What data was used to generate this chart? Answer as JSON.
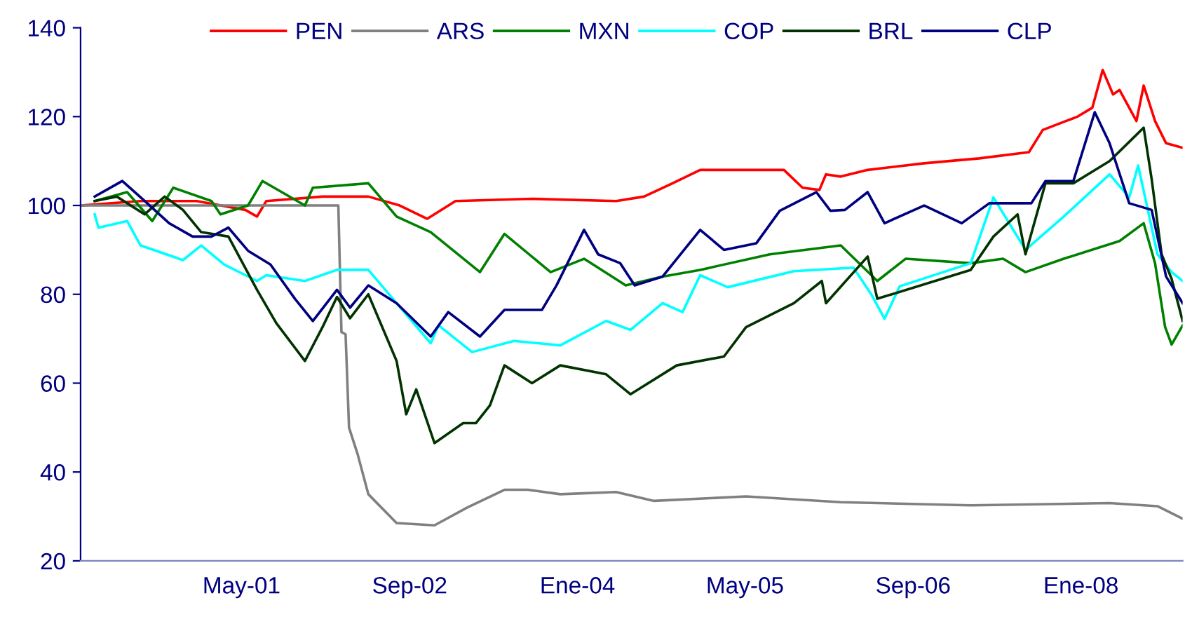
{
  "chart_data": {
    "type": "line",
    "xlim": [
      "2000-01-20",
      "2008-10-22"
    ],
    "xticks": [
      {
        "value": "2001-05-01",
        "label": "May-01"
      },
      {
        "value": "2002-09-01",
        "label": "Sep-02"
      },
      {
        "value": "2004-01-01",
        "label": "Ene-04"
      },
      {
        "value": "2005-05-01",
        "label": "May-05"
      },
      {
        "value": "2006-09-01",
        "label": "Sep-06"
      },
      {
        "value": "2008-01-01",
        "label": "Ene-08"
      }
    ],
    "ylim": [
      20,
      140
    ],
    "yticks": [
      20,
      40,
      60,
      80,
      100,
      120,
      140
    ],
    "grid": false,
    "legend": "top",
    "marker": "none",
    "line_style": "solid",
    "series": [
      {
        "name": "PEN",
        "color": "#ff0000",
        "x": [
          "2000-01-20",
          "2000-07-12",
          "2000-12-22",
          "2001-05-12",
          "2001-06-15",
          "2001-07-12",
          "2001-12-22",
          "2002-05-04",
          "2002-08-03",
          "2002-10-22",
          "2003-01-12",
          "2003-08-22",
          "2004-04-22",
          "2004-07-12",
          "2004-10-03",
          "2004-12-22",
          "2005-08-22",
          "2005-10-15",
          "2005-12-03",
          "2005-12-22",
          "2006-02-03",
          "2006-04-22",
          "2006-10-03",
          "2007-03-12",
          "2007-08-03",
          "2007-09-12",
          "2007-12-22",
          "2008-02-03",
          "2008-03-04",
          "2008-04-03",
          "2008-04-22",
          "2008-06-10",
          "2008-07-01",
          "2008-08-03",
          "2008-09-04",
          "2008-10-22"
        ],
        "values": [
          100,
          101,
          101,
          99,
          97.5,
          101,
          102,
          102,
          100,
          97,
          101,
          101.5,
          101,
          102,
          105,
          108,
          108,
          104,
          103.5,
          107,
          106.5,
          108,
          109.5,
          110.6,
          112,
          117,
          120,
          122,
          130.5,
          125,
          126,
          119,
          127,
          119,
          114,
          113
        ]
      },
      {
        "name": "ARS",
        "color": "#808080",
        "x": [
          "2000-01-20",
          "2002-02-06",
          "2002-02-15",
          "2002-02-27",
          "2002-03-09",
          "2002-04-03",
          "2002-05-04",
          "2002-07-25",
          "2002-11-12",
          "2003-02-15",
          "2003-06-03",
          "2003-08-10",
          "2003-11-12",
          "2004-04-22",
          "2004-08-10",
          "2005-05-04",
          "2006-02-03",
          "2007-02-15",
          "2008-03-24",
          "2008-08-10",
          "2008-10-22"
        ],
        "values": [
          100,
          100,
          71.5,
          71,
          50,
          44,
          35,
          28.5,
          28,
          32,
          36,
          36,
          35,
          35.5,
          33.5,
          34.5,
          33.2,
          32.5,
          33,
          32.3,
          29.5
        ]
      },
      {
        "name": "MXN",
        "color": "#008000",
        "x": [
          "2000-03-01",
          "2000-06-03",
          "2000-08-15",
          "2000-10-15",
          "2001-02-03",
          "2001-03-01",
          "2001-05-20",
          "2001-07-01",
          "2001-11-01",
          "2001-11-24",
          "2002-05-04",
          "2002-07-25",
          "2002-11-01",
          "2003-03-24",
          "2003-06-03",
          "2003-10-15",
          "2004-01-20",
          "2004-05-20",
          "2004-09-04",
          "2004-12-22",
          "2005-07-12",
          "2006-02-03",
          "2006-05-20",
          "2006-08-10",
          "2007-02-15",
          "2007-05-20",
          "2007-07-24",
          "2007-11-12",
          "2008-04-22",
          "2008-07-01",
          "2008-08-03",
          "2008-09-01",
          "2008-09-20",
          "2008-10-22"
        ],
        "values": [
          101,
          103,
          96.5,
          104,
          101,
          98,
          100,
          105.5,
          100,
          104,
          105,
          97.5,
          94,
          85,
          93.6,
          85,
          88,
          82,
          84,
          85.5,
          89,
          91,
          83,
          88,
          87,
          88,
          85,
          88,
          92,
          96,
          87,
          72.7,
          68.7,
          73
        ]
      },
      {
        "name": "COP",
        "color": "#00ffff",
        "x": [
          "2000-03-01",
          "2000-03-12",
          "2000-06-03",
          "2000-07-12",
          "2000-11-12",
          "2001-01-04",
          "2001-03-12",
          "2001-06-15",
          "2001-07-12",
          "2001-11-01",
          "2002-02-02",
          "2002-05-04",
          "2002-07-25",
          "2002-11-01",
          "2002-11-24",
          "2003-03-01",
          "2003-07-01",
          "2003-11-12",
          "2004-03-24",
          "2004-06-03",
          "2004-09-04",
          "2004-11-01",
          "2004-12-22",
          "2005-03-12",
          "2005-09-20",
          "2006-03-12",
          "2006-05-04",
          "2006-06-10",
          "2006-07-24",
          "2007-02-15",
          "2007-04-22",
          "2007-07-24",
          "2007-11-12",
          "2008-03-24",
          "2008-05-20",
          "2008-06-15",
          "2008-08-10",
          "2008-09-20",
          "2008-10-22"
        ],
        "values": [
          98,
          95,
          96.5,
          91,
          87.7,
          91,
          86.7,
          83,
          84.3,
          83,
          85.5,
          85.5,
          78,
          69,
          73,
          67,
          69.5,
          68.5,
          74,
          72,
          78,
          76,
          84.3,
          81.6,
          85.2,
          86,
          79.8,
          74.5,
          81.8,
          87,
          101.8,
          90,
          97.5,
          107,
          101.8,
          109,
          89,
          85,
          83
        ]
      },
      {
        "name": "BRL",
        "color": "#003300",
        "x": [
          "2000-03-01",
          "2000-05-04",
          "2000-07-24",
          "2000-09-20",
          "2000-11-12",
          "2001-01-04",
          "2001-03-24",
          "2001-06-15",
          "2001-08-10",
          "2001-11-01",
          "2001-12-22",
          "2002-02-02",
          "2002-03-12",
          "2002-05-04",
          "2002-07-25",
          "2002-08-22",
          "2002-09-20",
          "2002-11-12",
          "2003-02-03",
          "2003-03-12",
          "2003-04-22",
          "2003-06-03",
          "2003-08-22",
          "2003-11-12",
          "2004-03-24",
          "2004-06-03",
          "2004-10-15",
          "2005-03-01",
          "2005-05-04",
          "2005-09-20",
          "2005-12-10",
          "2005-12-22",
          "2006-04-22",
          "2006-05-20",
          "2007-02-15",
          "2007-04-22",
          "2007-07-01",
          "2007-07-24",
          "2007-09-20",
          "2007-12-10",
          "2008-03-24",
          "2008-07-01",
          "2008-07-24",
          "2008-08-22",
          "2008-09-20",
          "2008-10-22"
        ],
        "values": [
          101,
          102,
          98,
          102,
          99,
          94,
          93,
          81,
          73.5,
          65,
          72.6,
          79.4,
          74.6,
          80,
          65,
          53,
          58.6,
          46.5,
          51,
          51,
          55,
          64,
          60,
          64,
          62,
          57.5,
          64,
          66,
          72.6,
          78,
          83,
          78,
          88.5,
          79,
          85.5,
          93,
          98,
          89,
          105,
          105,
          110,
          117.5,
          106,
          89,
          83.5,
          74
        ]
      },
      {
        "name": "CLP",
        "color": "#000080",
        "x": [
          "2000-03-01",
          "2000-05-20",
          "2000-07-24",
          "2000-10-03",
          "2000-12-10",
          "2001-02-03",
          "2001-03-24",
          "2001-05-20",
          "2001-07-24",
          "2001-10-03",
          "2001-11-24",
          "2002-02-02",
          "2002-03-12",
          "2002-05-04",
          "2002-07-25",
          "2002-11-01",
          "2002-12-22",
          "2003-03-24",
          "2003-06-03",
          "2003-09-20",
          "2003-11-01",
          "2004-01-20",
          "2004-03-01",
          "2004-05-04",
          "2004-06-15",
          "2004-09-04",
          "2004-12-22",
          "2005-03-01",
          "2005-06-03",
          "2005-08-10",
          "2005-11-24",
          "2006-01-04",
          "2006-02-15",
          "2006-04-22",
          "2006-06-10",
          "2006-10-03",
          "2007-01-20",
          "2007-04-10",
          "2007-08-10",
          "2007-09-20",
          "2007-12-10",
          "2008-02-10",
          "2008-03-24",
          "2008-05-20",
          "2008-07-24",
          "2008-09-04",
          "2008-10-22"
        ],
        "values": [
          102,
          105.5,
          101,
          96,
          93,
          93,
          95,
          89.8,
          86.7,
          79,
          74,
          81,
          77,
          82,
          78,
          70.5,
          76,
          70.5,
          76.5,
          76.5,
          82,
          94.5,
          89,
          87,
          82,
          84,
          94.5,
          90,
          91.5,
          98.8,
          103,
          98.8,
          99,
          103,
          96,
          100,
          96,
          100.5,
          100.5,
          105.5,
          105.5,
          121,
          114,
          100.5,
          99,
          84,
          78
        ]
      }
    ]
  }
}
